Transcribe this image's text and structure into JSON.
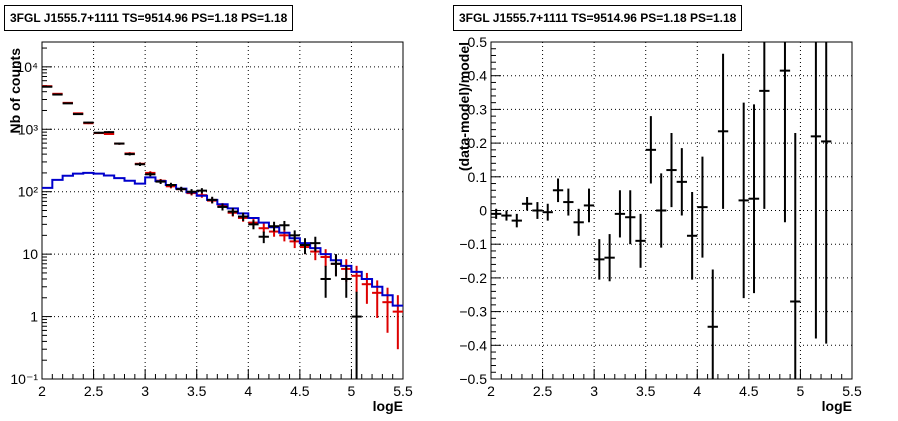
{
  "chart_data": [
    {
      "type": "line",
      "title": "3FGL J1555.7+1111 TS=9514.96 PS=1.18 PS=1.18",
      "xlabel": "logE",
      "ylabel": "Nb of counts",
      "xlim": [
        2,
        5.5
      ],
      "ylim": [
        0.1,
        25000
      ],
      "yscale": "log",
      "grid": true,
      "x_ticks": [
        "2",
        "2.5",
        "3",
        "3.5",
        "4",
        "4.5",
        "5",
        "5.5"
      ],
      "y_ticks": [
        "10⁻¹",
        "1",
        "10",
        "10²",
        "10³",
        "10⁴"
      ],
      "colors": {
        "data": "#000000",
        "red_model": "#dd0000",
        "blue_model": "#0000cc"
      },
      "bin_edges": [
        2.0,
        2.1,
        2.2,
        2.3,
        2.4,
        2.5,
        2.6,
        2.7,
        2.8,
        2.9,
        3.0,
        3.1,
        3.2,
        3.3,
        3.4,
        3.5,
        3.6,
        3.7,
        3.8,
        3.9,
        4.0,
        4.1,
        4.2,
        4.3,
        4.4,
        4.5,
        4.6,
        4.7,
        4.8,
        4.9,
        5.0,
        5.1,
        5.2,
        5.3,
        5.4,
        5.5
      ],
      "series": [
        {
          "role": "data",
          "x": [
            2.05,
            2.15,
            2.25,
            2.35,
            2.45,
            2.55,
            2.65,
            2.75,
            2.85,
            2.95,
            3.05,
            3.15,
            3.25,
            3.35,
            3.45,
            3.55,
            3.65,
            3.75,
            3.85,
            3.95,
            4.05,
            4.15,
            4.25,
            4.35,
            4.45,
            4.55,
            4.65,
            4.75,
            4.85,
            4.95,
            5.05,
            5.15,
            5.25,
            5.35,
            5.45
          ],
          "values": [
            4800,
            3600,
            2600,
            1750,
            1280,
            880,
            900,
            590,
            400,
            275,
            190,
            145,
            128,
            110,
            100,
            104,
            74,
            57,
            48,
            40,
            30,
            19,
            28,
            29,
            20,
            14,
            15,
            4,
            7,
            4,
            1,
            null,
            null,
            null,
            null
          ],
          "err_low": [
            4731,
            3540,
            2549,
            1708,
            1244,
            850,
            870,
            566,
            380,
            258,
            176,
            133,
            117,
            100,
            90,
            94,
            65,
            50,
            41,
            34,
            25,
            15,
            23,
            24,
            16,
            10,
            11,
            2,
            4.4,
            2,
            0.05,
            null,
            null,
            null,
            null
          ],
          "err_high": [
            4869,
            3660,
            2651,
            1792,
            1316,
            910,
            930,
            614,
            420,
            292,
            204,
            157,
            139,
            120,
            110,
            114,
            83,
            64,
            55,
            46,
            35,
            23,
            33,
            34,
            24,
            18,
            19,
            6.5,
            10,
            6.5,
            2.5,
            null,
            null,
            null,
            null
          ]
        },
        {
          "role": "red_model",
          "values": [
            4900,
            3700,
            2650,
            1800,
            1250,
            870,
            840,
            590,
            410,
            280,
            200,
            150,
            122,
            110,
            95,
            88,
            72,
            59,
            46,
            38,
            32,
            26,
            23,
            20,
            16,
            13,
            11,
            9,
            7,
            5.8,
            4.5,
            3.3,
            2.4,
            1.7,
            1.2
          ],
          "err_low": [
            4830,
            3640,
            2600,
            1760,
            1210,
            840,
            810,
            566,
            390,
            265,
            187,
            140,
            113,
            101,
            87,
            80,
            65,
            52,
            40,
            33,
            27,
            22,
            19,
            16,
            12.5,
            10,
            8,
            6.2,
            4.5,
            3.6,
            2.4,
            1.6,
            0.95,
            0.55,
            0.3
          ],
          "err_high": [
            4970,
            3760,
            2700,
            1840,
            1290,
            900,
            870,
            614,
            430,
            295,
            213,
            160,
            131,
            119,
            103,
            96,
            80,
            66,
            52,
            43,
            37,
            31,
            28,
            24,
            19.5,
            17,
            14,
            12,
            9.5,
            8.3,
            6.5,
            5,
            3.8,
            2.9,
            2.2
          ]
        },
        {
          "role": "blue_model",
          "values": [
            115,
            155,
            180,
            195,
            200,
            195,
            182,
            165,
            150,
            135,
            170,
            148,
            128,
            112,
            98,
            86,
            74,
            63,
            54,
            45,
            38,
            32,
            27,
            22,
            18,
            15,
            12.5,
            10,
            8,
            6.5,
            5.2,
            4,
            3,
            2.2,
            1.5
          ]
        }
      ]
    },
    {
      "type": "scatter",
      "title": "3FGL J1555.7+1111 TS=9514.96 PS=1.18 PS=1.18",
      "xlabel": "logE",
      "ylabel": "(data-model)/model",
      "xlim": [
        2,
        5.5
      ],
      "ylim": [
        -0.5,
        0.5
      ],
      "grid": true,
      "x_ticks": [
        "2",
        "2.5",
        "3",
        "3.5",
        "4",
        "4.5",
        "5",
        "5.5"
      ],
      "y_ticks": [
        "−0.5",
        "−0.4",
        "−0.3",
        "−0.2",
        "−0.1",
        "0",
        "0.1",
        "0.2",
        "0.3",
        "0.4",
        "0.5"
      ],
      "x": [
        2.05,
        2.15,
        2.25,
        2.35,
        2.45,
        2.55,
        2.65,
        2.75,
        2.85,
        2.95,
        3.05,
        3.15,
        3.25,
        3.35,
        3.45,
        3.55,
        3.65,
        3.75,
        3.85,
        3.95,
        4.05,
        4.15,
        4.25,
        4.35,
        4.45,
        4.55,
        4.65,
        4.75,
        4.85,
        4.95,
        5.05,
        5.15,
        5.25
      ],
      "values": [
        -0.01,
        -0.015,
        -0.03,
        0.02,
        0.0,
        -0.005,
        0.06,
        0.025,
        -0.035,
        0.015,
        -0.145,
        -0.14,
        -0.01,
        -0.02,
        -0.09,
        0.18,
        0.0,
        0.12,
        0.085,
        -0.075,
        0.01,
        -0.345,
        0.235,
        null,
        0.03,
        0.035,
        0.355,
        null,
        0.415,
        -0.27,
        null,
        0.22,
        0.205
      ],
      "err": [
        0.015,
        0.015,
        0.02,
        0.02,
        0.025,
        0.025,
        0.035,
        0.04,
        0.04,
        0.05,
        0.06,
        0.07,
        0.07,
        0.08,
        0.08,
        0.1,
        0.11,
        0.11,
        0.1,
        0.13,
        0.15,
        0.17,
        0.23,
        null,
        0.29,
        0.28,
        0.35,
        null,
        0.45,
        0.5,
        null,
        0.6,
        0.6
      ]
    }
  ]
}
